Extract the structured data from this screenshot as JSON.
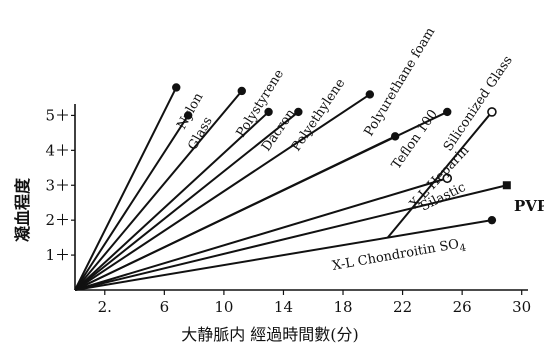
{
  "chart_data": {
    "type": "line",
    "xlabel": "大静脈内 經過時間數(分)",
    "ylabel": "凝血程度",
    "xlim": [
      0,
      30
    ],
    "ylim": [
      0,
      6
    ],
    "x_ticks": [
      {
        "value": 2,
        "label": "2."
      },
      {
        "value": 6,
        "label": "6"
      },
      {
        "value": 10,
        "label": "10"
      },
      {
        "value": 14,
        "label": "14"
      },
      {
        "value": 18,
        "label": "18"
      },
      {
        "value": 22,
        "label": "22"
      },
      {
        "value": 26,
        "label": "26"
      },
      {
        "value": 30,
        "label": "30"
      }
    ],
    "y_ticks": [
      {
        "value": 1,
        "label": "1＋"
      },
      {
        "value": 2,
        "label": "2＋"
      },
      {
        "value": 3,
        "label": "3＋"
      },
      {
        "value": 4,
        "label": "4＋"
      },
      {
        "value": 5,
        "label": "5＋"
      }
    ],
    "series": [
      {
        "name": "Nylon",
        "points": [
          [
            0,
            0
          ],
          [
            6.8,
            5.8
          ]
        ],
        "end_marker": "filled-circle"
      },
      {
        "name": "Glass",
        "points": [
          [
            0,
            0
          ],
          [
            7.6,
            5.0
          ]
        ],
        "end_marker": "filled-circle"
      },
      {
        "name": "Polystyrene",
        "points": [
          [
            0,
            0
          ],
          [
            11.2,
            5.7
          ]
        ],
        "end_marker": "filled-circle"
      },
      {
        "name": "Dacron",
        "points": [
          [
            0,
            0
          ],
          [
            13.0,
            5.1
          ]
        ],
        "end_marker": "filled-circle"
      },
      {
        "name": "Polyethylene",
        "points": [
          [
            0,
            0
          ],
          [
            15.0,
            5.1
          ]
        ],
        "end_marker": "filled-circle"
      },
      {
        "name": "Polyurethane foam",
        "points": [
          [
            0,
            0
          ],
          [
            19.8,
            5.6
          ]
        ],
        "end_marker": "filled-circle"
      },
      {
        "name": "Teflon 100",
        "points": [
          [
            0,
            0
          ],
          [
            21.5,
            4.4
          ]
        ],
        "end_marker": "filled-circle"
      },
      {
        "name": "Siliconized Glass",
        "points": [
          [
            0,
            0
          ],
          [
            25.0,
            5.1
          ]
        ],
        "end_marker": "filled-circle"
      },
      {
        "name": "X-L Heparin",
        "points": [
          [
            21.0,
            1.5
          ],
          [
            28.0,
            5.1
          ]
        ],
        "end_marker": "open-circle"
      },
      {
        "name": "Silastic",
        "points": [
          [
            0,
            0
          ],
          [
            25.0,
            3.2
          ]
        ],
        "end_marker": "open-circle"
      },
      {
        "name": "PVP",
        "points": [
          [
            0,
            0
          ],
          [
            29.0,
            3.0
          ]
        ],
        "end_marker": "filled-square"
      },
      {
        "name": "X-L Chondroitin SO4",
        "points": [
          [
            0,
            0
          ],
          [
            28.0,
            2.0
          ]
        ],
        "end_marker": "filled-circle"
      }
    ],
    "labels": {
      "Nylon": "Nylon",
      "Glass": "Glass",
      "Polystyrene": "Polystyrene",
      "Dacron": "Dacron",
      "Polyethylene": "Polyethylene",
      "Polyurethane foam": "Polyurethane foam",
      "Teflon 100": "Teflon 100",
      "Siliconized Glass": "Siliconized Glass",
      "X-L Heparin": "X-L Heparin",
      "Silastic": "Silastic",
      "PVP": "PVP",
      "X-L Chondroitin SO4": "X-L Chondroitin SO4"
    },
    "grid": false,
    "line_color": "#111111"
  }
}
